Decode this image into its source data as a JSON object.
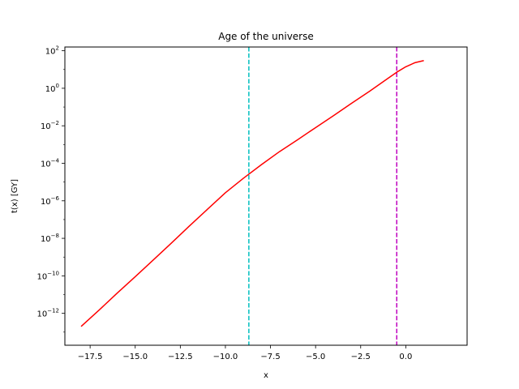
{
  "chart_data": {
    "type": "line",
    "title": "Age of the universe",
    "xlabel": "x",
    "ylabel": "t(x) [GY]",
    "xlim": [
      -18.9,
      3.4
    ],
    "ylim_log10": [
      -13.7,
      2.2
    ],
    "yscale": "log",
    "grid": false,
    "x_ticks": [
      -17.5,
      -15.0,
      -12.5,
      -10.0,
      -7.5,
      -5.0,
      -2.5,
      0.0
    ],
    "x_tick_labels": [
      "−17.5",
      "−15.0",
      "−12.5",
      "−10.0",
      "−7.5",
      "−5.0",
      "−2.5",
      "0.0"
    ],
    "y_tick_exponents": [
      -12,
      -10,
      -8,
      -6,
      -4,
      -2,
      0,
      2
    ],
    "y_tick_labels": [
      "−12",
      "−10",
      "−8",
      "−6",
      "−4",
      "−2",
      "0",
      "2"
    ],
    "series": [
      {
        "color": "#ff0000",
        "style": "solid",
        "x": [
          -18.0,
          -17.0,
          -16.0,
          -15.0,
          -14.0,
          -13.0,
          -12.0,
          -11.0,
          -10.0,
          -9.0,
          -8.0,
          -7.0,
          -6.0,
          -5.0,
          -4.0,
          -3.0,
          -2.0,
          -1.0,
          -0.5,
          0.0,
          0.5,
          1.0
        ],
        "y": [
          2e-13,
          1.5e-12,
          1.2e-11,
          9e-11,
          7e-10,
          5.5e-09,
          4.5e-08,
          3.5e-07,
          2.7e-06,
          1.6e-05,
          8.5e-05,
          0.00042,
          0.0018,
          0.008,
          0.035,
          0.16,
          0.7,
          3.3,
          7.2,
          14.0,
          23.0,
          30.0
        ]
      }
    ],
    "vlines": [
      {
        "x": -8.7,
        "color": "#00bfbf",
        "style": "dashed"
      },
      {
        "x": -0.5,
        "color": "#bf00bf",
        "style": "dashed"
      }
    ]
  }
}
